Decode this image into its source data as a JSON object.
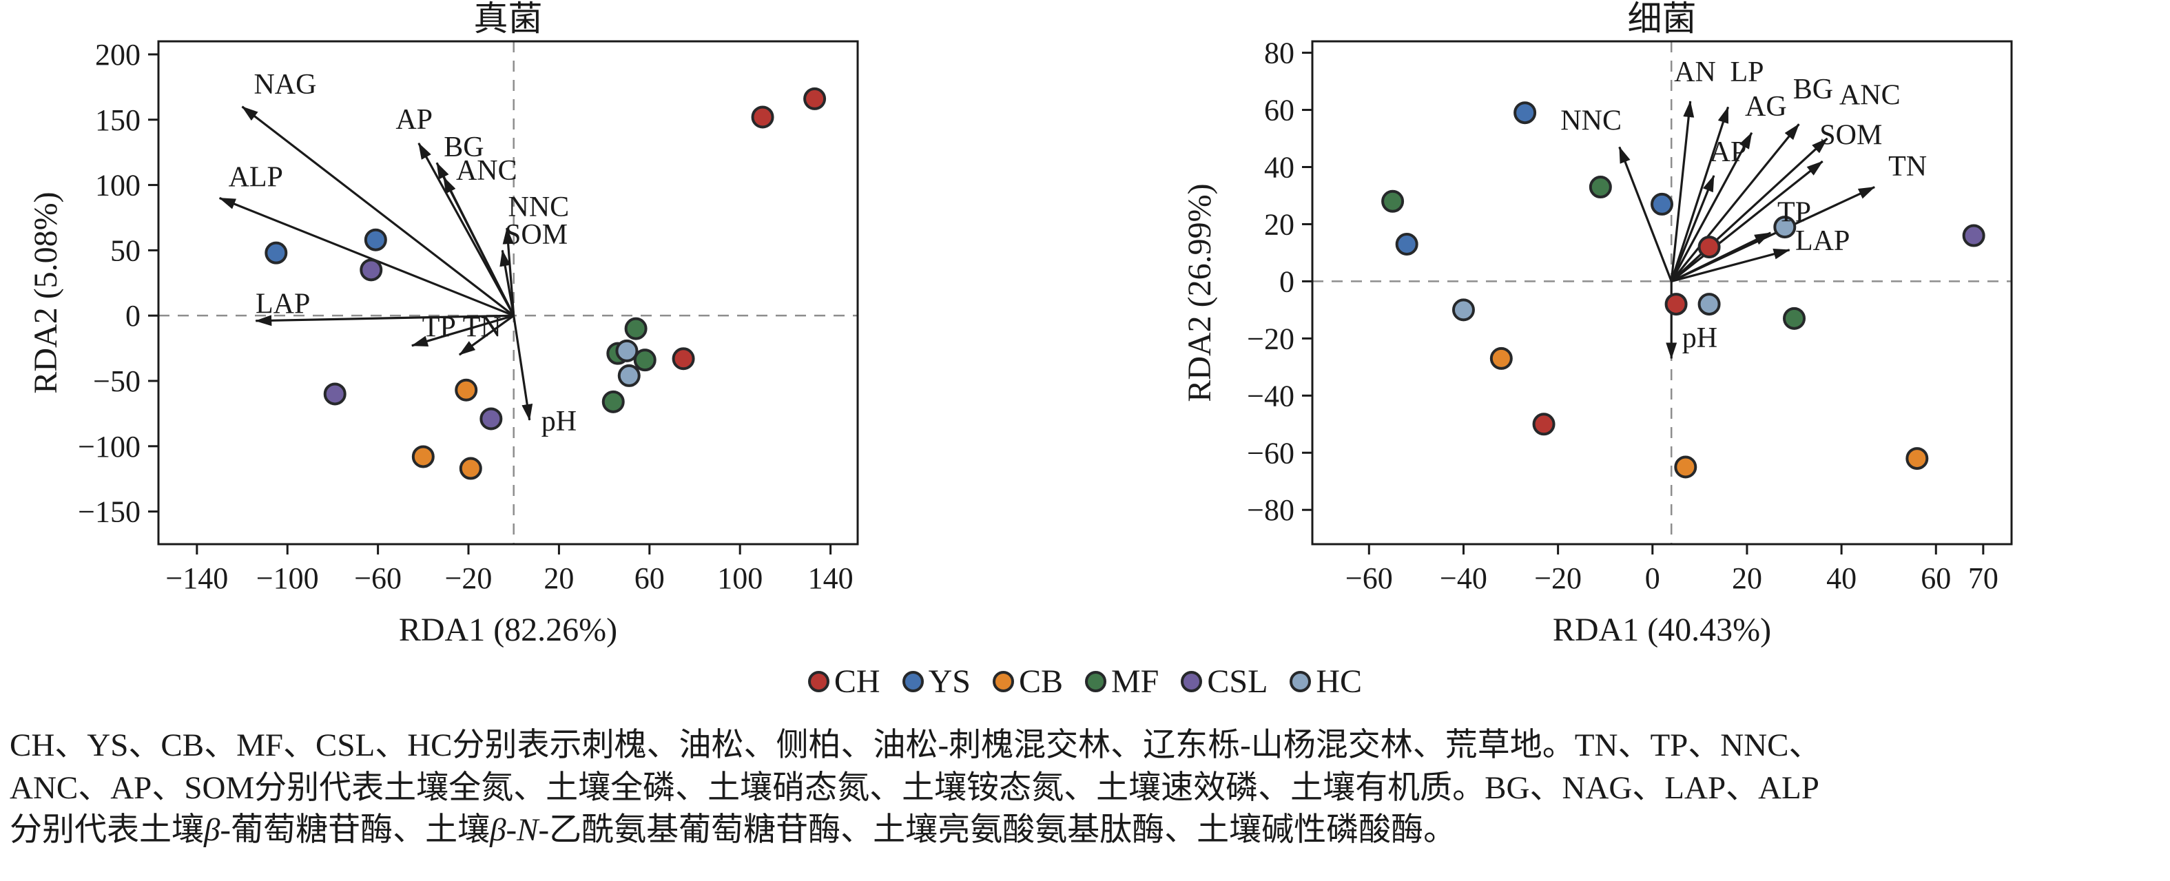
{
  "colors": {
    "CH": "#b63732",
    "YS": "#4472b0",
    "CB": "#e2862b",
    "MF": "#41784b",
    "CSL": "#6f5f9e",
    "HC": "#8aa5c0"
  },
  "legend": {
    "items": [
      {
        "label": "CH"
      },
      {
        "label": "YS"
      },
      {
        "label": "CB"
      },
      {
        "label": "MF"
      },
      {
        "label": "CSL"
      },
      {
        "label": "HC"
      }
    ]
  },
  "caption": {
    "lines": [
      {
        "segments": [
          {
            "text": "CH、YS、CB、MF、CSL、HC分别表示刺槐、油松、侧柏、油松-刺槐混交林、辽东栎-山杨混交林、荒草地。TN、TP、NNC、",
            "italic": false
          }
        ]
      },
      {
        "segments": [
          {
            "text": "ANC、AP、SOM分别代表土壤全氮、土壤全磷、土壤硝态氮、土壤铵态氮、土壤速效磷、土壤有机质。BG、NAG、LAP、ALP",
            "italic": false
          }
        ]
      },
      {
        "segments": [
          {
            "text": "分别代表土壤",
            "italic": false
          },
          {
            "text": "β",
            "italic": true
          },
          {
            "text": "-葡萄糖苷酶、土壤",
            "italic": false
          },
          {
            "text": "β",
            "italic": true
          },
          {
            "text": "-",
            "italic": false
          },
          {
            "text": "N",
            "italic": true
          },
          {
            "text": "-乙酰氨基葡萄糖苷酶、土壤亮氨酸氨基肽酶、土壤碱性磷酸酶。",
            "italic": false
          }
        ]
      }
    ]
  },
  "chart_data": [
    {
      "type": "scatter",
      "title": "真菌",
      "xlabel": "RDA1 (82.26%)",
      "ylabel": "RDA2 (5.08%)",
      "xlim": [
        -157,
        152
      ],
      "ylim": [
        -175,
        210
      ],
      "xticks": [
        -140,
        -100,
        -60,
        -20,
        20,
        60,
        100,
        140
      ],
      "yticks": [
        -150,
        -100,
        -50,
        0,
        50,
        100,
        150,
        200
      ],
      "origin": [
        0,
        0
      ],
      "grid": false,
      "points": [
        {
          "group": "CH",
          "x": 110,
          "y": 152
        },
        {
          "group": "CH",
          "x": 133,
          "y": 166
        },
        {
          "group": "CH",
          "x": 75,
          "y": -33
        },
        {
          "group": "YS",
          "x": -105,
          "y": 48
        },
        {
          "group": "YS",
          "x": -61,
          "y": 58
        },
        {
          "group": "CSL",
          "x": -63,
          "y": 35
        },
        {
          "group": "CSL",
          "x": -79,
          "y": -60
        },
        {
          "group": "CSL",
          "x": -10,
          "y": -79
        },
        {
          "group": "CB",
          "x": -40,
          "y": -108
        },
        {
          "group": "CB",
          "x": -19,
          "y": -117
        },
        {
          "group": "CB",
          "x": -21,
          "y": -57
        },
        {
          "group": "MF",
          "x": 54,
          "y": -10
        },
        {
          "group": "MF",
          "x": 46,
          "y": -29
        },
        {
          "group": "MF",
          "x": 58,
          "y": -34
        },
        {
          "group": "MF",
          "x": 44,
          "y": -66
        },
        {
          "group": "HC",
          "x": 50,
          "y": -27
        },
        {
          "group": "HC",
          "x": 51,
          "y": -46
        }
      ],
      "arrows": [
        {
          "label": "NAG",
          "x": -120,
          "y": 160,
          "lx": -101,
          "ly": 170
        },
        {
          "label": "ALP",
          "x": -130,
          "y": 90,
          "lx": -114,
          "ly": 99
        },
        {
          "label": "AP",
          "x": -42,
          "y": 132,
          "lx": -44,
          "ly": 143
        },
        {
          "label": "BG",
          "x": -34,
          "y": 117,
          "lx": -22,
          "ly": 122
        },
        {
          "label": "ANC",
          "x": -31,
          "y": 106,
          "lx": -12,
          "ly": 104
        },
        {
          "label": "NNC",
          "x": -3,
          "y": 67,
          "lx": 11,
          "ly": 76
        },
        {
          "label": "SOM",
          "x": -5,
          "y": 50,
          "lx": 10,
          "ly": 55
        },
        {
          "label": "LAP",
          "x": -114,
          "y": -4,
          "lx": -102,
          "ly": 2
        },
        {
          "label": "TP",
          "x": -45,
          "y": -23,
          "lx": -33,
          "ly": -16
        },
        {
          "label": "TN",
          "x": -24,
          "y": -30,
          "lx": -14,
          "ly": -16
        },
        {
          "label": "pH",
          "x": 7,
          "y": -80,
          "lx": 20,
          "ly": -88
        }
      ]
    },
    {
      "type": "scatter",
      "title": "细菌",
      "xlabel": "RDA1 (40.43%)",
      "ylabel": "RDA2 (26.99%)",
      "xlim": [
        -72,
        76
      ],
      "ylim": [
        -92,
        84
      ],
      "xticks": [
        -60,
        -40,
        -20,
        0,
        20,
        40,
        60,
        70
      ],
      "yticks": [
        -80,
        -60,
        -40,
        -20,
        0,
        20,
        40,
        60,
        80
      ],
      "origin": [
        4,
        0
      ],
      "grid": false,
      "points": [
        {
          "group": "MF",
          "x": -55,
          "y": 28
        },
        {
          "group": "MF",
          "x": -11,
          "y": 33
        },
        {
          "group": "MF",
          "x": 30,
          "y": -13
        },
        {
          "group": "YS",
          "x": -52,
          "y": 13
        },
        {
          "group": "YS",
          "x": -27,
          "y": 59
        },
        {
          "group": "YS",
          "x": 2,
          "y": 27
        },
        {
          "group": "HC",
          "x": -40,
          "y": -10
        },
        {
          "group": "HC",
          "x": 12,
          "y": -8
        },
        {
          "group": "HC",
          "x": 28,
          "y": 19
        },
        {
          "group": "CH",
          "x": -23,
          "y": -50
        },
        {
          "group": "CH",
          "x": 12,
          "y": 12
        },
        {
          "group": "CH",
          "x": 5,
          "y": -8
        },
        {
          "group": "CSL",
          "x": 68,
          "y": 16
        },
        {
          "group": "CB",
          "x": -32,
          "y": -27
        },
        {
          "group": "CB",
          "x": 7,
          "y": -65
        },
        {
          "group": "CB",
          "x": 56,
          "y": -62
        }
      ],
      "arrows": [
        {
          "label": "AN",
          "x": 8,
          "y": 63,
          "lx": 9,
          "ly": 70
        },
        {
          "label": "LP",
          "x": 16,
          "y": 61,
          "lx": 20,
          "ly": 70
        },
        {
          "label": "AG",
          "x": 21,
          "y": 52,
          "lx": 24,
          "ly": 58
        },
        {
          "label": "BG",
          "x": 31,
          "y": 55,
          "lx": 34,
          "ly": 64
        },
        {
          "label": "ANC",
          "x": 37,
          "y": 50,
          "lx": 46,
          "ly": 62
        },
        {
          "label": "SOM",
          "x": 36,
          "y": 42,
          "lx": 42,
          "ly": 48
        },
        {
          "label": "TN",
          "x": 47,
          "y": 33,
          "lx": 54,
          "ly": 37
        },
        {
          "label": "NNC",
          "x": -7,
          "y": 47,
          "lx": -13,
          "ly": 53
        },
        {
          "label": "AP",
          "x": 13,
          "y": 37,
          "lx": 16,
          "ly": 42
        },
        {
          "label": "TP",
          "x": 25,
          "y": 17,
          "lx": 30,
          "ly": 21
        },
        {
          "label": "LAP",
          "x": 29,
          "y": 11,
          "lx": 36,
          "ly": 11
        },
        {
          "label": "pH",
          "x": 4,
          "y": -27,
          "lx": 10,
          "ly": -23
        }
      ]
    }
  ]
}
